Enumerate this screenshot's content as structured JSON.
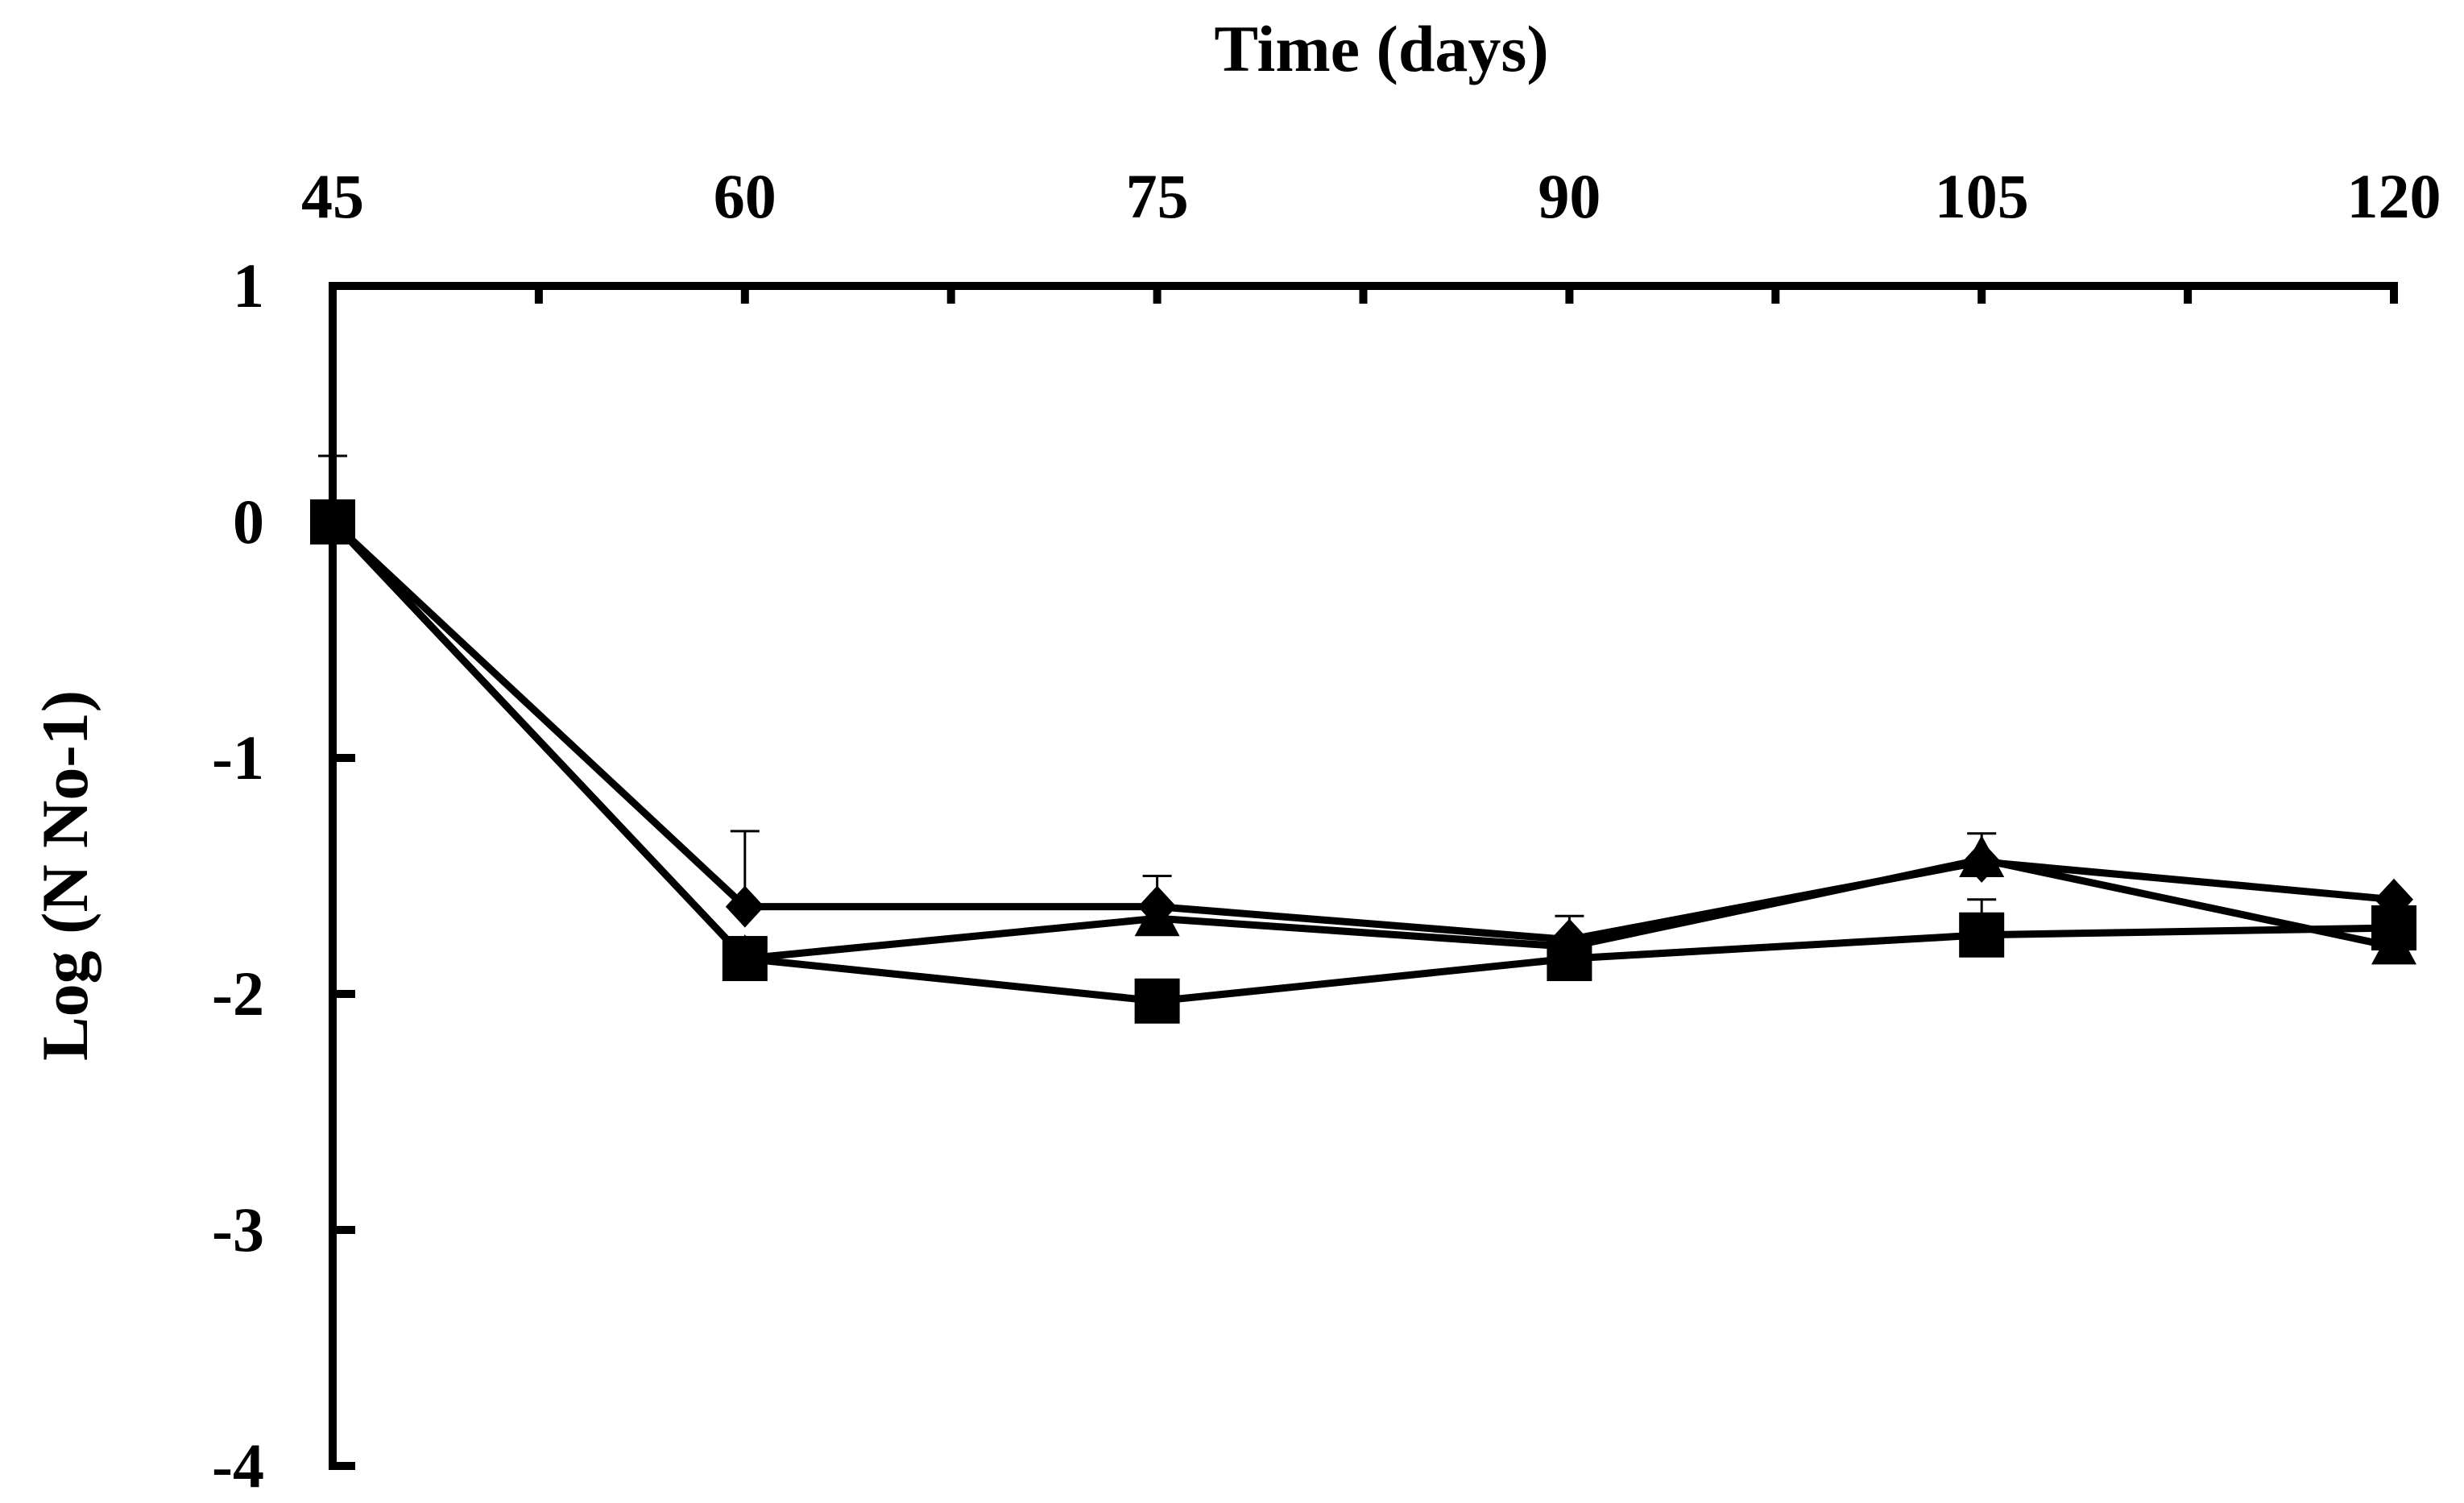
{
  "chart_data": {
    "type": "line",
    "title": "",
    "xlabel": "Time (days)",
    "ylabel": "Log  (N No-1)",
    "x_axis_position": "top",
    "x": [
      45,
      60,
      75,
      90,
      105,
      120
    ],
    "x_ticks": [
      "45",
      "60",
      "75",
      "90",
      "105",
      "120"
    ],
    "y_ticks": [
      "1",
      "0",
      "-1",
      "-2",
      "-3",
      "-4"
    ],
    "xlim": [
      45,
      120
    ],
    "ylim": [
      -4,
      1
    ],
    "grid": false,
    "legend": "none",
    "series": [
      {
        "marker": "diamond",
        "values": [
          0,
          -1.63,
          -1.63,
          -1.77,
          -1.44,
          -1.6
        ],
        "error_plus": [
          0.28,
          0.32,
          0.13,
          0.1,
          0.12,
          0
        ]
      },
      {
        "marker": "triangle",
        "values": [
          0,
          -1.85,
          -1.68,
          -1.8,
          -1.43,
          -1.8
        ],
        "error_plus": [
          0,
          0,
          0,
          0,
          0,
          0
        ]
      },
      {
        "marker": "square",
        "values": [
          0,
          -1.85,
          -2.03,
          -1.85,
          -1.75,
          -1.72
        ],
        "error_plus": [
          0,
          0,
          0,
          0,
          0.15,
          0
        ]
      }
    ],
    "colors": {
      "line": "#000000",
      "marker": "#000000",
      "background": "#ffffff"
    }
  }
}
